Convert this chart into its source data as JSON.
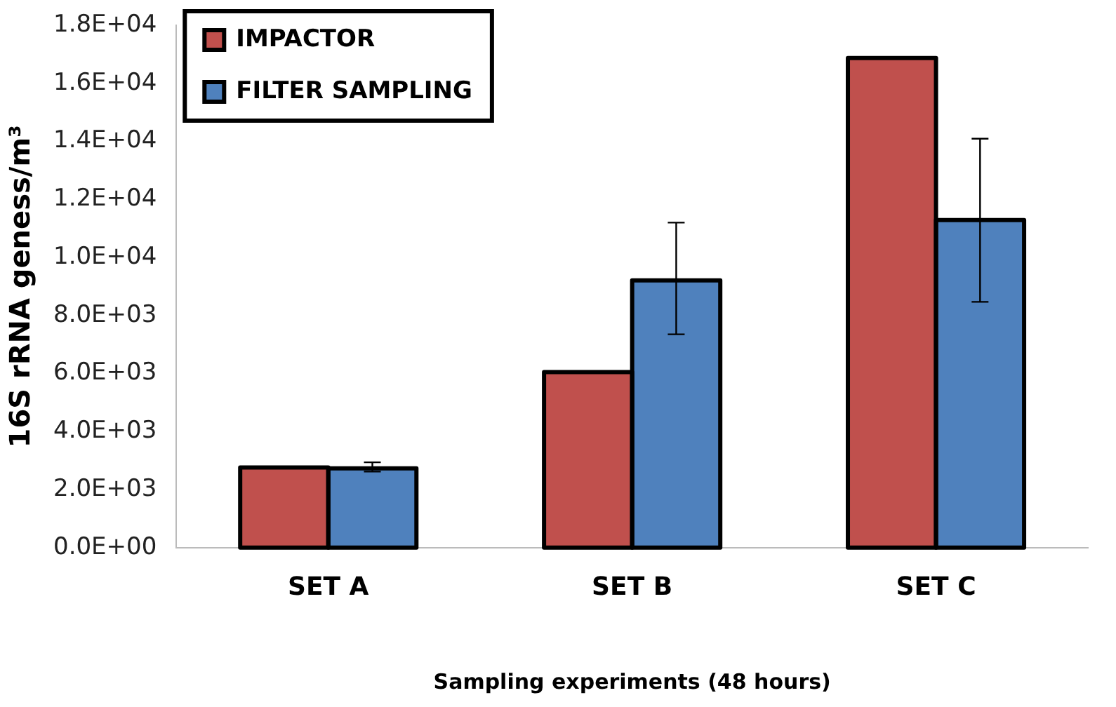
{
  "chart_data": {
    "type": "bar",
    "xlabel": "Sampling experiments (48 hours)",
    "ylabel": "16S rRNA geness/m³",
    "categories": [
      "SET A",
      "SET B",
      "SET C"
    ],
    "series": [
      {
        "name": "IMPACTOR",
        "color": "#c0504d",
        "values": [
          2760,
          6050,
          16870
        ]
      },
      {
        "name": "FILTER SAMPLING",
        "color": "#4f81bd",
        "values": [
          2730,
          9210,
          11290
        ],
        "errors": [
          [
            2620,
            2940
          ],
          [
            7350,
            11200
          ],
          [
            8470,
            14090
          ]
        ]
      }
    ],
    "ylim": [
      0,
      18000
    ],
    "yticks": [
      {
        "value": 0,
        "label": "0.0E+00"
      },
      {
        "value": 2000,
        "label": "2.0E+03"
      },
      {
        "value": 4000,
        "label": "4.0E+03"
      },
      {
        "value": 6000,
        "label": "6.0E+03"
      },
      {
        "value": 8000,
        "label": "8.0E+03"
      },
      {
        "value": 10000,
        "label": "1.0E+04"
      },
      {
        "value": 12000,
        "label": "1.2E+04"
      },
      {
        "value": 14000,
        "label": "1.4E+04"
      },
      {
        "value": 16000,
        "label": "1.6E+04"
      },
      {
        "value": 18000,
        "label": "1.8E+04"
      }
    ],
    "legend": "top left",
    "grid": false
  }
}
